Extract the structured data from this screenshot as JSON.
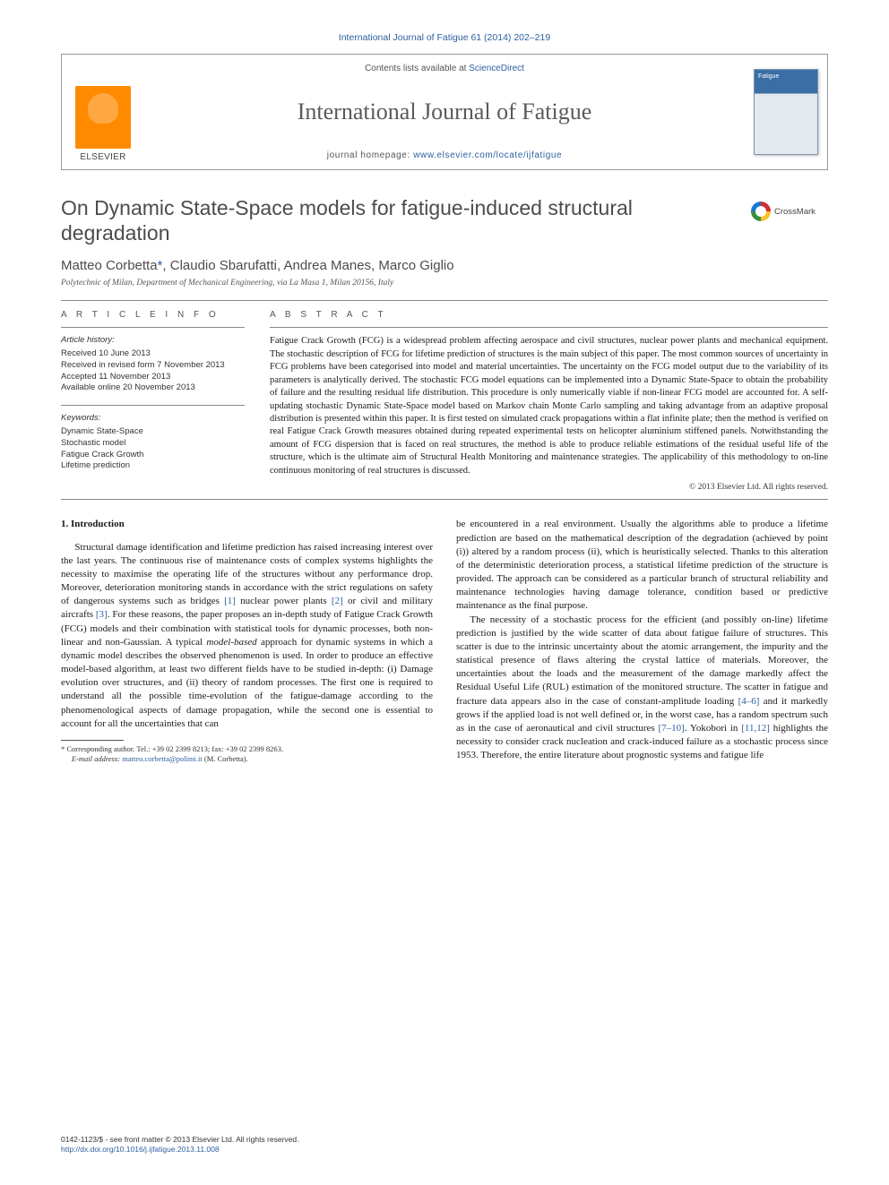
{
  "journal_ref": "International Journal of Fatigue 61 (2014) 202–219",
  "header": {
    "contents_prefix": "Contents lists available at ",
    "contents_link": "ScienceDirect",
    "journal_name": "International Journal of Fatigue",
    "homepage_prefix": "journal homepage: ",
    "homepage_url": "www.elsevier.com/locate/ijfatigue",
    "publisher": "ELSEVIER",
    "cover_title": "Fatigue"
  },
  "article": {
    "title": "On Dynamic State-Space models for fatigue-induced structural degradation",
    "crossmark": "CrossMark",
    "authors_html": "Matteo Corbetta",
    "corr_mark": "*",
    "authors_rest": ", Claudio Sbarufatti, Andrea Manes, Marco Giglio",
    "affiliation": "Polytechnic of Milan, Department of Mechanical Engineering, via La Masa 1, Milan 20156, Italy"
  },
  "info": {
    "heading": "A R T I C L E   I N F O",
    "history_label": "Article history:",
    "received": "Received 10 June 2013",
    "revised": "Received in revised form 7 November 2013",
    "accepted": "Accepted 11 November 2013",
    "online": "Available online 20 November 2013",
    "keywords_label": "Keywords:",
    "kw1": "Dynamic State-Space",
    "kw2": "Stochastic model",
    "kw3": "Fatigue Crack Growth",
    "kw4": "Lifetime prediction"
  },
  "abstract": {
    "heading": "A B S T R A C T",
    "text": "Fatigue Crack Growth (FCG) is a widespread problem affecting aerospace and civil structures, nuclear power plants and mechanical equipment. The stochastic description of FCG for lifetime prediction of structures is the main subject of this paper. The most common sources of uncertainty in FCG problems have been categorised into model and material uncertainties. The uncertainty on the FCG model output due to the variability of its parameters is analytically derived. The stochastic FCG model equations can be implemented into a Dynamic State-Space to obtain the probability of failure and the resulting residual life distribution. This procedure is only numerically viable if non-linear FCG model are accounted for. A self-updating stochastic Dynamic State-Space model based on Markov chain Monte Carlo sampling and taking advantage from an adaptive proposal distribution is presented within this paper. It is first tested on simulated crack propagations within a flat infinite plate; then the method is verified on real Fatigue Crack Growth measures obtained during repeated experimental tests on helicopter aluminium stiffened panels. Notwithstanding the amount of FCG dispersion that is faced on real structures, the method is able to produce reliable estimations of the residual useful life of the structure, which is the ultimate aim of Structural Health Monitoring and maintenance strategies. The applicability of this methodology to on-line continuous monitoring of real structures is discussed.",
    "copyright": "© 2013 Elsevier Ltd. All rights reserved."
  },
  "body": {
    "section_number": "1.",
    "section_title": "Introduction",
    "p1a": "Structural damage identification and lifetime prediction has raised increasing interest over the last years. The continuous rise of maintenance costs of complex systems highlights the necessity to maximise the operating life of the structures without any performance drop. Moreover, deterioration monitoring stands in accordance with the strict regulations on safety of dangerous systems such as bridges ",
    "r1": "[1]",
    "p1b": " nuclear power plants ",
    "r2": "[2]",
    "p1c": " or civil and military aircrafts ",
    "r3": "[3]",
    "p1d": ". For these reasons, the paper proposes an in-depth study of Fatigue Crack Growth (FCG) models and their combination with statistical tools for dynamic processes, both non-linear and non-Gaussian. A typical ",
    "p1_model": "model-based",
    "p1e": " approach for dynamic systems in which a dynamic model describes the observed phenomenon is used. In order to produce an effective model-based algorithm, at least two different fields have to be studied in-depth: (i) Damage evolution over structures, and (ii) theory of random processes. The first one is required to understand all the possible time-evolution of the fatigue-damage according to the phenomenological aspects of damage propagation, while the second one is essential to account for all the uncertainties that can",
    "p2a": "be encountered in a real environment. Usually the algorithms able to produce a lifetime prediction are based on the mathematical description of the degradation (achieved by point (i)) altered by a random process (ii), which is heuristically selected. Thanks to this alteration of the deterministic deterioration process, a statistical lifetime prediction of the structure is provided. The approach can be considered as a particular branch of structural reliability and maintenance technologies having damage tolerance, condition based or predictive maintenance as the final purpose.",
    "p3a": "The necessity of a stochastic process for the efficient (and possibly on-line) lifetime prediction is justified by the wide scatter of data about fatigue failure of structures. This scatter is due to the intrinsic uncertainty about the atomic arrangement, the impurity and the statistical presence of flaws altering the crystal lattice of materials. Moreover, the uncertainties about the loads and the measurement of the damage markedly affect the Residual Useful Life (RUL) estimation of the monitored structure. The scatter in fatigue and fracture data appears also in the case of constant-amplitude loading ",
    "r46": "[4–6]",
    "p3b": " and it markedly grows if the applied load is not well defined or, in the worst case, has a random spectrum such as in the case of aeronautical and civil structures ",
    "r710": "[7–10]",
    "p3c": ". Yokobori in ",
    "r1112": "[11,12]",
    "p3d": " highlights the necessity to consider crack nucleation and crack-induced failure as a stochastic process since 1953. Therefore, the entire literature about prognostic systems and fatigue life"
  },
  "footnote": {
    "corr_label": "* Corresponding author. Tel.: +39 02 2399 8213; fax: +39 02 2399 8263.",
    "email_label": "E-mail address:",
    "email": "matteo.corbetta@polimi.it",
    "email_suffix": "(M. Corbetta)."
  },
  "footer": {
    "issn": "0142-1123/$ - see front matter © 2013 Elsevier Ltd. All rights reserved.",
    "doi": "http://dx.doi.org/10.1016/j.ijfatigue.2013.11.008"
  },
  "colors": {
    "link": "#2c5f9e",
    "title_gray": "#4c4c4c",
    "rule": "#888888",
    "elsevier_orange": "#ff8a00",
    "cover_blue": "#3a6ea5"
  }
}
